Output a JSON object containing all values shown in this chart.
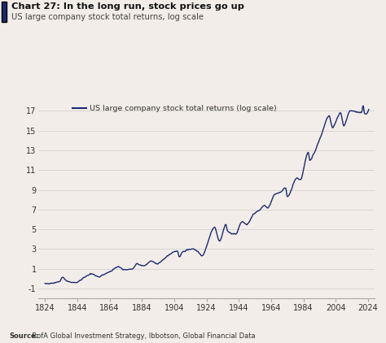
{
  "title_bold": "Chart 27: In the long run, stock prices go up",
  "title_sub": "US large company stock total returns, log scale",
  "legend_label": "US large company stock total returns (log scale)",
  "source_text_bold": "Source:",
  "source_text_normal": "  BofA Global Investment Strategy, Ibbotson, Global Financial Data",
  "line_color": "#1b2a72",
  "background_color": "#f2ede8",
  "accent_color": "#1b2a72",
  "yticks": [
    -1,
    1,
    3,
    5,
    7,
    9,
    11,
    13,
    15,
    17
  ],
  "xticks": [
    1824,
    1844,
    1864,
    1884,
    1904,
    1924,
    1944,
    1964,
    1984,
    2004,
    2024
  ],
  "xmin": 1820,
  "xmax": 2028,
  "ymin": -2.0,
  "ymax": 18.5
}
